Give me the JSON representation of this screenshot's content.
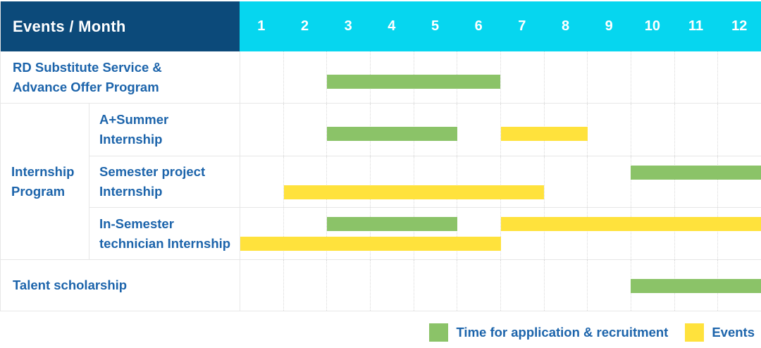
{
  "colors": {
    "navy": "#0c4a7a",
    "cyan": "#06d6ef",
    "text-blue": "#1c64ab",
    "green": "#8bc368",
    "yellow": "#ffe23c",
    "grid": "#e7e7e7",
    "dots": "#d9d9d9"
  },
  "table": {
    "corner_label": "Events / Month",
    "months": [
      "1",
      "2",
      "3",
      "4",
      "5",
      "6",
      "7",
      "8",
      "9",
      "10",
      "11",
      "12"
    ]
  },
  "chart_data": {
    "type": "bar",
    "subtype": "gantt",
    "title": "",
    "xlabel": "Month",
    "x_ticks": [
      1,
      2,
      3,
      4,
      5,
      6,
      7,
      8,
      9,
      10,
      11,
      12
    ],
    "xlim": [
      1,
      12
    ],
    "grid": "vertical-dotted",
    "legend_position": "bottom-right",
    "series_legend": [
      {
        "name": "application",
        "label": "Time for application & recruitment",
        "color": "#8bc368"
      },
      {
        "name": "events",
        "label": "Events",
        "color": "#ffe23c"
      }
    ],
    "group": {
      "label": "Internship Program",
      "label_lines": [
        "Internship",
        "Program"
      ]
    },
    "rows": [
      {
        "label": "RD Substitute Service & Advance Offer Program",
        "label_lines": [
          "RD Substitute Service &",
          "Advance Offer Program"
        ],
        "group": null,
        "bars": [
          {
            "series": "application",
            "start_month": 3,
            "end_month": 6,
            "lane": "single"
          }
        ]
      },
      {
        "label": "A+Summer Internship",
        "label_lines": [
          "A+Summer",
          "Internship"
        ],
        "group": "Internship Program",
        "bars": [
          {
            "series": "application",
            "start_month": 3,
            "end_month": 5,
            "lane": "single"
          },
          {
            "series": "events",
            "start_month": 7,
            "end_month": 8,
            "lane": "single"
          }
        ]
      },
      {
        "label": "Semester project Internship",
        "label_lines": [
          "Semester project",
          "Internship"
        ],
        "group": "Internship Program",
        "bars": [
          {
            "series": "application",
            "start_month": 10,
            "end_month": 12,
            "lane": "upper"
          },
          {
            "series": "events",
            "start_month": 2,
            "end_month": 7,
            "lane": "lower"
          }
        ]
      },
      {
        "label": "In-Semester technician Internship",
        "label_lines": [
          "In-Semester",
          "technician Internship"
        ],
        "group": "Internship Program",
        "bars": [
          {
            "series": "application",
            "start_month": 3,
            "end_month": 5,
            "lane": "upper"
          },
          {
            "series": "events",
            "start_month": 7,
            "end_month": 12,
            "lane": "upper"
          },
          {
            "series": "events",
            "start_month": 1,
            "end_month": 6,
            "lane": "lower"
          }
        ]
      },
      {
        "label": "Talent scholarship",
        "label_lines": [
          "Talent scholarship"
        ],
        "group": null,
        "bars": [
          {
            "series": "application",
            "start_month": 10,
            "end_month": 12,
            "lane": "middle"
          }
        ]
      }
    ]
  },
  "legend": {
    "items": [
      {
        "label": "Time for application & recruitment",
        "color": "#8bc368"
      },
      {
        "label": "Events",
        "color": "#ffe23c"
      }
    ]
  }
}
